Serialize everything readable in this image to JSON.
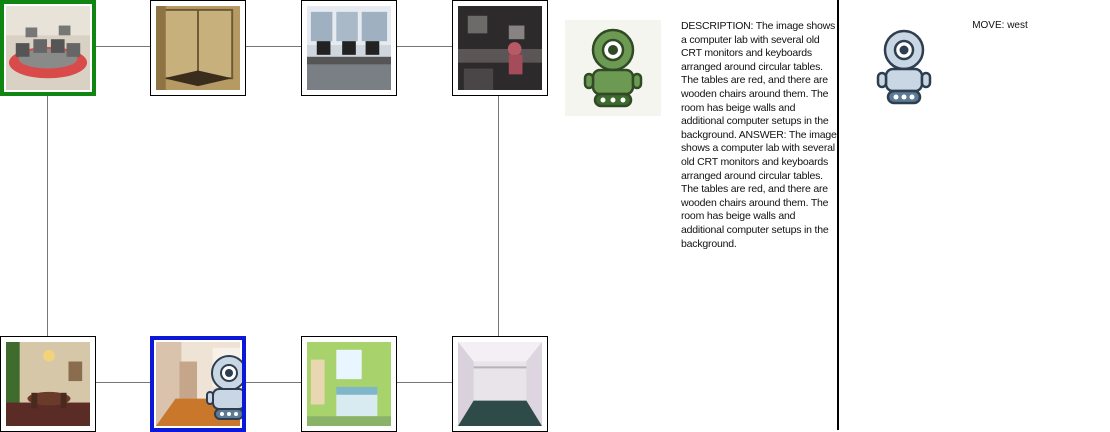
{
  "grid": {
    "nodes": [
      {
        "id": "n1",
        "scene": "computer-lab",
        "state": "current"
      },
      {
        "id": "n2",
        "scene": "glass-shower"
      },
      {
        "id": "n3",
        "scene": "office-desks"
      },
      {
        "id": "n4",
        "scene": "dark-lab"
      },
      {
        "id": "n5",
        "scene": "dining-room"
      },
      {
        "id": "n6",
        "scene": "hallway",
        "state": "agent"
      },
      {
        "id": "n7",
        "scene": "green-bedroom"
      },
      {
        "id": "n8",
        "scene": "empty-closet"
      }
    ],
    "colors": {
      "current_border": "#118511",
      "agent_border": "#0b18d8",
      "link": "#777777"
    }
  },
  "panel": {
    "description_text": "DESCRIPTION: The image shows a computer lab with several old CRT monitors and keyboards arranged around circular tables. The tables are red, and there are wooden chairs around them. The room has beige walls and additional computer setups in the background.  ANSWER: The image shows a computer lab with several old CRT monitors and keyboards arranged around circular tables. The tables are red, and there are wooden chairs around them. The room has beige walls and additional computer setups in the background.",
    "move_text": "MOVE: west"
  },
  "icons": {
    "panel_robot": "green-robot-icon",
    "agent": "gray-robot-icon"
  }
}
